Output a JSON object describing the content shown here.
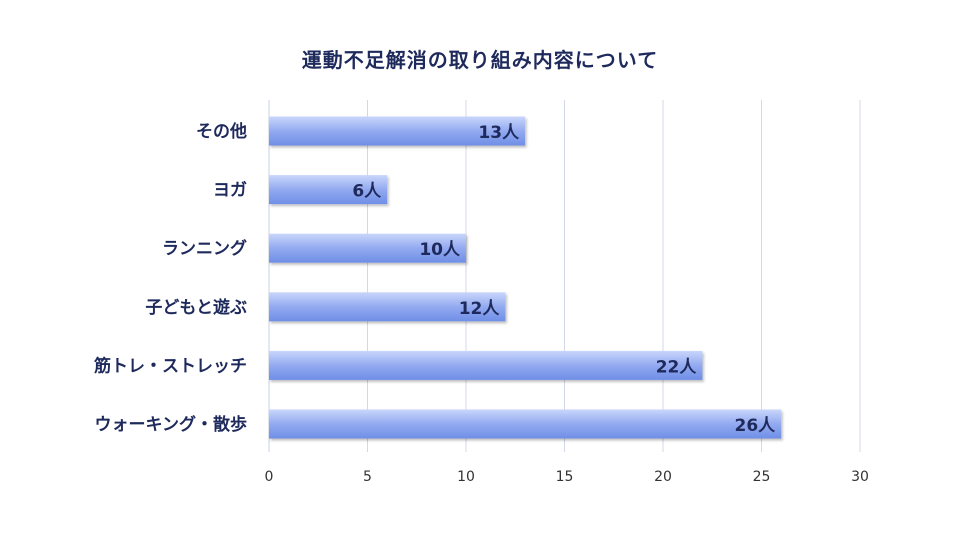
{
  "chart_data": {
    "type": "bar",
    "orientation": "horizontal",
    "title": "運動不足解消の取り組み内容について",
    "categories": [
      "その他",
      "ヨガ",
      "ランニング",
      "子どもと遊ぶ",
      "筋トレ・ストレッチ",
      "ウォーキング・散歩"
    ],
    "values": [
      13,
      6,
      10,
      12,
      22,
      26
    ],
    "data_labels": [
      "13人",
      "6人",
      "10人",
      "12人",
      "22人",
      "26人"
    ],
    "xlim": [
      0,
      30
    ],
    "x_ticks": [
      0,
      5,
      10,
      15,
      20,
      25,
      30
    ],
    "grid": true,
    "legend": "none",
    "colors": {
      "bar_top": "#c9d6fb",
      "bar_mid": "#93aaf0",
      "bar_bottom": "#6f8ee6",
      "gridline": "#d3d8e6",
      "text": "#1f2a5c",
      "tick_text": "#333333"
    }
  }
}
